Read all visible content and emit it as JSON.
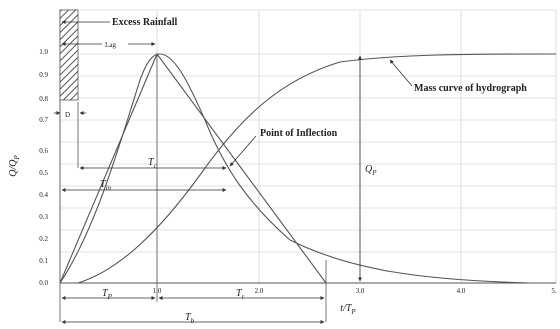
{
  "axes": {
    "x_label": "t/T",
    "x_label_sub": "P",
    "y_label": "Q/Q",
    "y_label_sub": "P",
    "x_ticks": [
      "1.0",
      "2.0",
      "3.0",
      "4.0",
      "5."
    ],
    "y_ticks": [
      "0.0",
      "0.1",
      "0.2",
      "0.3",
      "0.4",
      "0.5",
      "0.6",
      "0.7",
      "0.8",
      "0.9",
      "1.0"
    ]
  },
  "annotations": {
    "excess_rainfall": "Excess Rainfall",
    "lag": "Lag",
    "d": "D",
    "mass_curve": "Mass curve of hydrograph",
    "point_of_inflection": "Point of Inflection"
  },
  "symbols": {
    "tc": "T",
    "tc_sub": "c",
    "tin": "T",
    "tin_sub": "in",
    "qp": "Q",
    "qp_sub": "P",
    "tp": "T",
    "tp_sub": "P",
    "tr": "T",
    "tr_sub": "r",
    "tb": "T",
    "tb_sub": "b"
  },
  "colors": {
    "line": "#555555",
    "grid": "#c8c8c8",
    "text": "#222222"
  }
}
